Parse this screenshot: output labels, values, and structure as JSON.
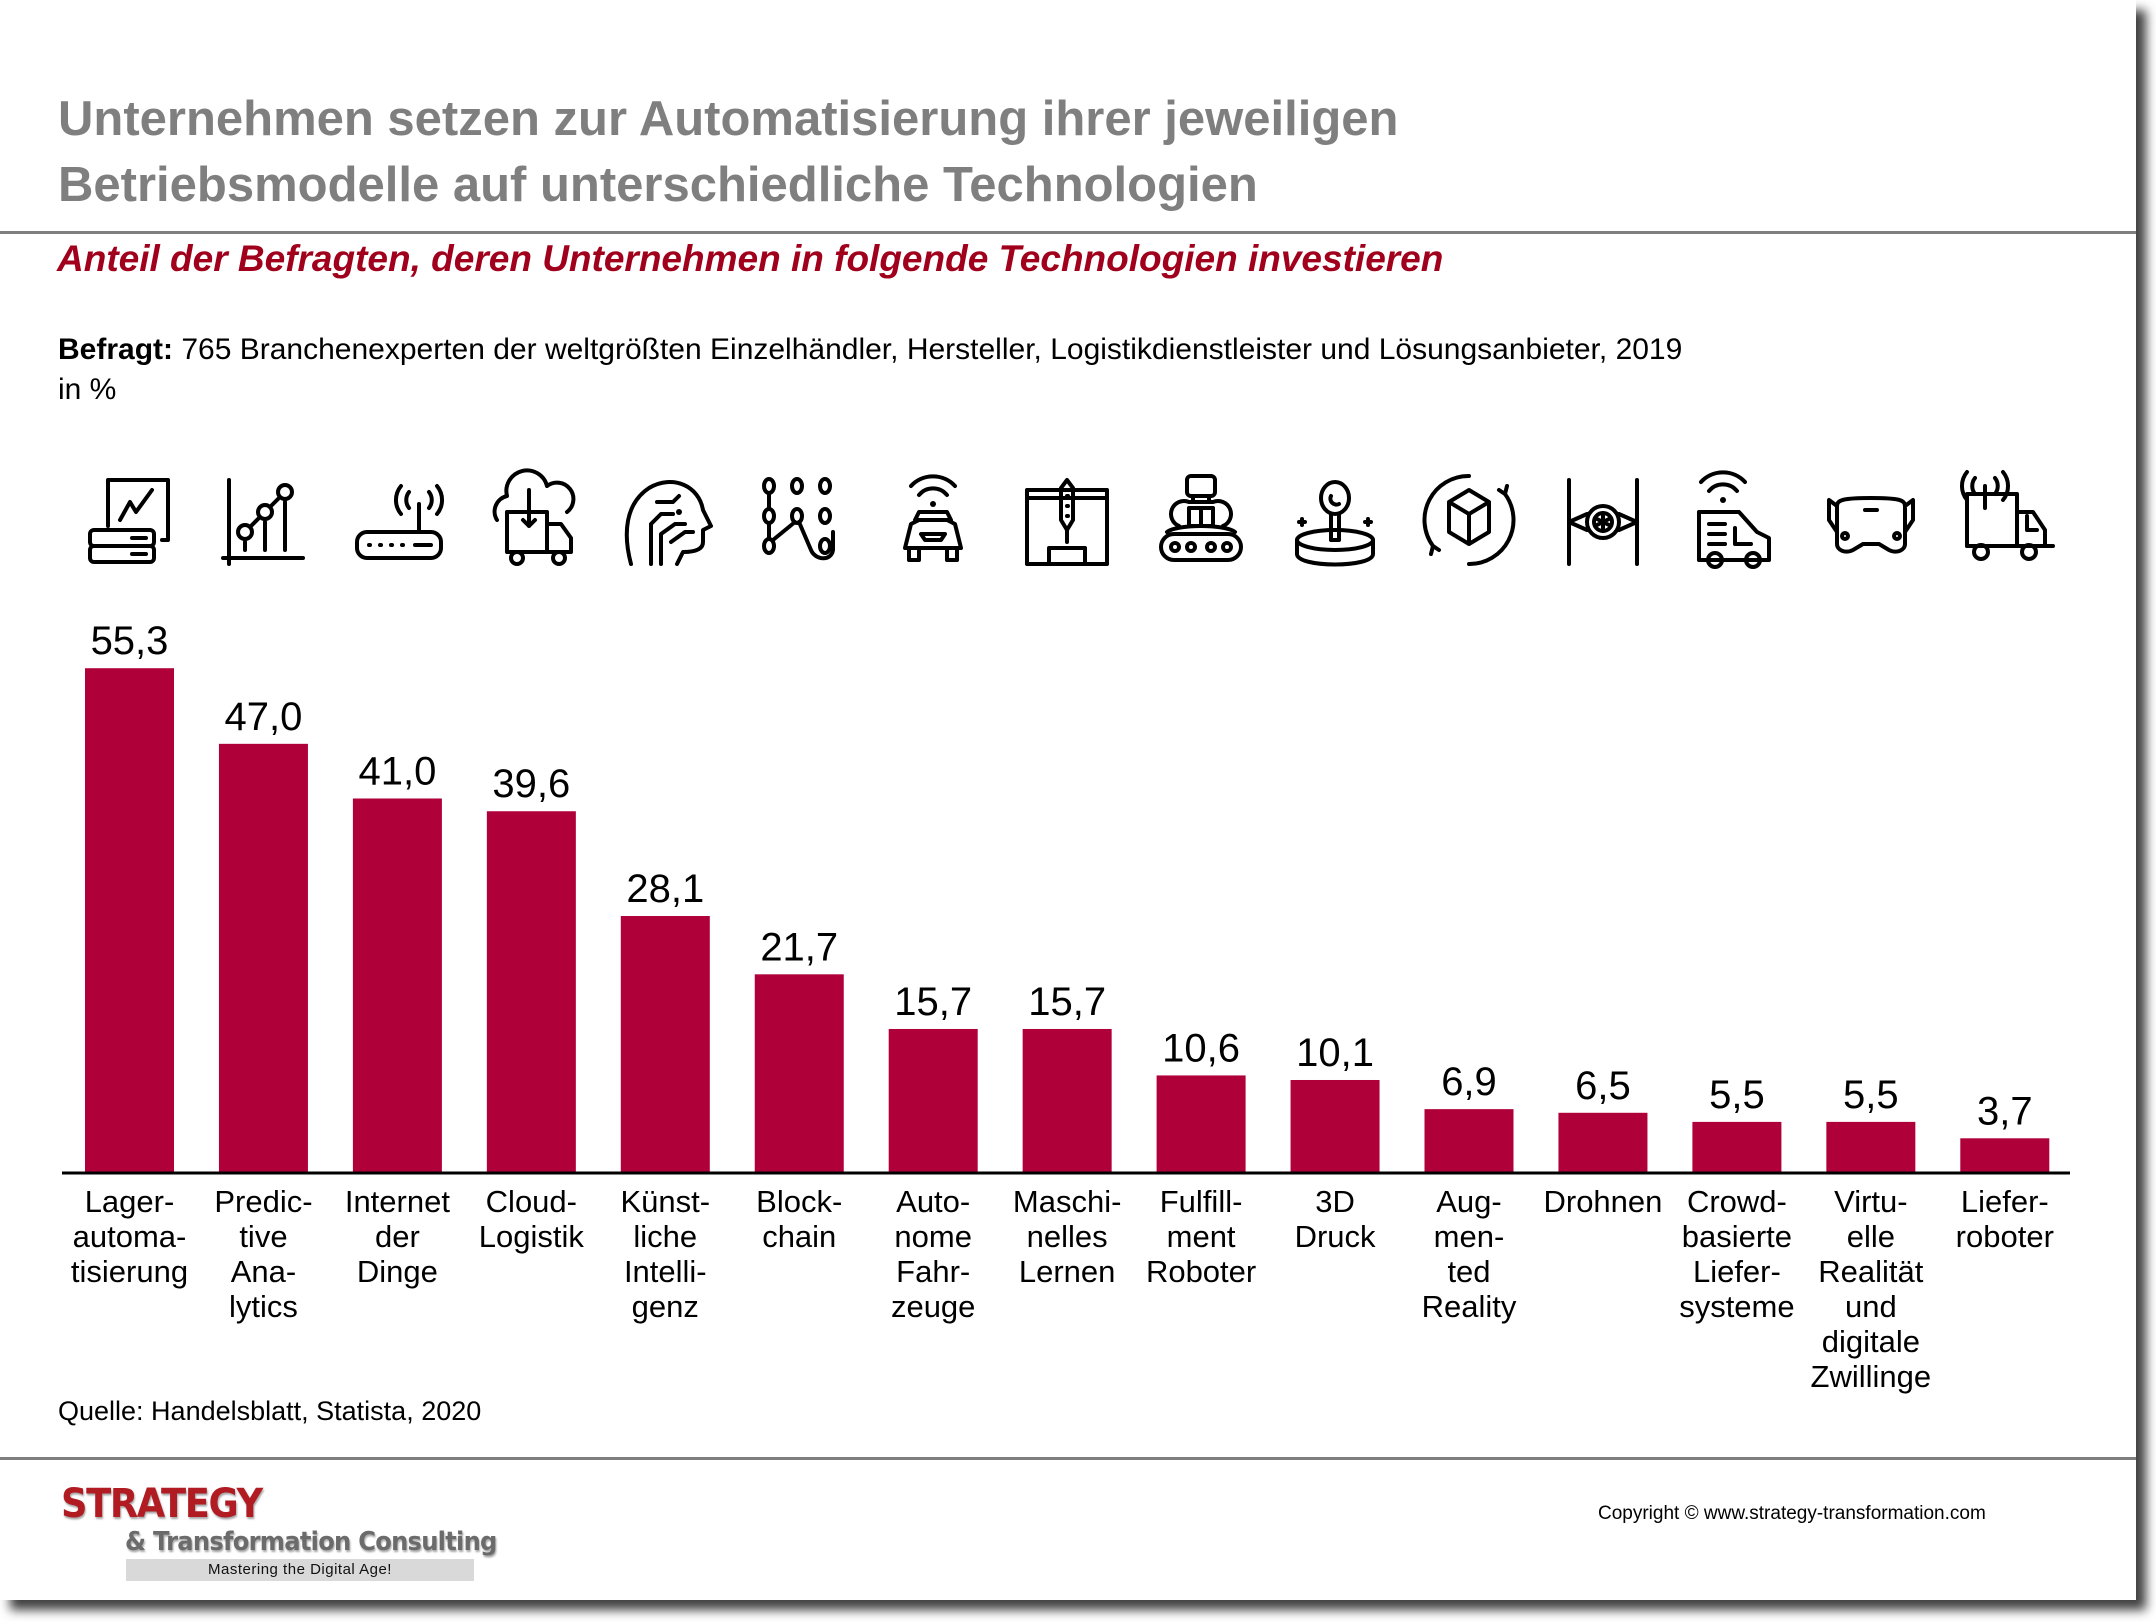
{
  "header": {
    "title_lines": [
      "Unternehmen setzen zur Automatisierung ihrer jeweiligen",
      "Betriebsmodelle auf unterschiedliche Technologien"
    ],
    "subtitle": "Anteil der Befragten, deren Unternehmen in folgende Technologien investieren",
    "surveyed_label": "Befragt:",
    "surveyed_text": " 765 Branchenexperten der weltgrößten Einzelhändler, Hersteller, Logistikdienstleister und Lösungsanbieter, 2019",
    "unit": "in %"
  },
  "colors": {
    "bar": "#b0003a",
    "title": "#7f7f7f",
    "subtitle": "#a0001b",
    "logo_red": "#b11b22"
  },
  "icons": [
    "analytics-server-icon",
    "line-chart-icon",
    "wifi-router-icon",
    "cloud-truck-icon",
    "ai-head-icon",
    "blockchain-touch-icon",
    "connected-car-icon",
    "3d-printer-icon",
    "conveyor-robot-icon",
    "hologram-ar-icon",
    "rotating-cube-icon",
    "drone-icon",
    "connected-van-icon",
    "vr-headset-icon",
    "connected-truck-icon"
  ],
  "chart_data": {
    "type": "bar",
    "title": "Anteil der Befragten, deren Unternehmen in folgende Technologien investieren",
    "xlabel": "",
    "ylabel": "in %",
    "ylim": [
      0,
      60
    ],
    "grid": false,
    "legend": "none",
    "categories": [
      [
        "Lager-",
        "automa-",
        "tisierung"
      ],
      [
        "Predic-",
        "tive",
        "Ana-",
        "lytics"
      ],
      [
        "Internet",
        "der",
        "Dinge"
      ],
      [
        "Cloud-",
        "Logistik"
      ],
      [
        "Künst-",
        "liche",
        "Intelli-",
        "genz"
      ],
      [
        "Block-",
        "chain"
      ],
      [
        "Auto-",
        "nome",
        "Fahr-",
        "zeuge"
      ],
      [
        "Maschi-",
        "nelles",
        "Lernen"
      ],
      [
        "Fulfill-",
        "ment",
        "Roboter"
      ],
      [
        "3D",
        "Druck"
      ],
      [
        "Aug-",
        "men-",
        "ted",
        "Reality"
      ],
      [
        "Drohnen"
      ],
      [
        "Crowd-",
        "basierte",
        "Liefer-",
        "systeme"
      ],
      [
        "Virtu-",
        "elle",
        "Realität",
        "und",
        "digitale",
        "Zwillinge"
      ],
      [
        "Liefer-",
        "roboter"
      ]
    ],
    "values": [
      55.3,
      47.0,
      41.0,
      39.6,
      28.1,
      21.7,
      15.7,
      15.7,
      10.6,
      10.1,
      6.9,
      6.5,
      5.5,
      5.5,
      3.7
    ],
    "value_labels": [
      "55,3",
      "47,0",
      "41,0",
      "39,6",
      "28,1",
      "21,7",
      "15,7",
      "15,7",
      "10,6",
      "10,1",
      "6,9",
      "6,5",
      "5,5",
      "5,5",
      "3,7"
    ]
  },
  "footer": {
    "source": "Quelle: Handelsblatt, Statista, 2020",
    "logo_line1": "STRATEGY",
    "logo_line2": "& Transformation Consulting",
    "logo_tagline": "Mastering the Digital Age!",
    "copyright": "Copyright © www.strategy-transformation.com"
  }
}
